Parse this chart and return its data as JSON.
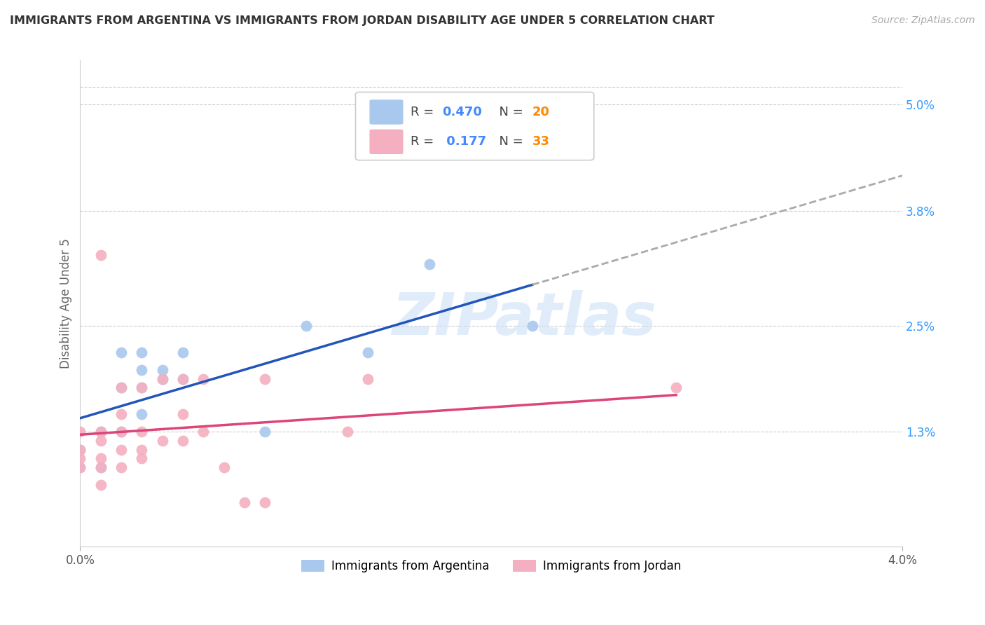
{
  "title": "IMMIGRANTS FROM ARGENTINA VS IMMIGRANTS FROM JORDAN DISABILITY AGE UNDER 5 CORRELATION CHART",
  "source": "Source: ZipAtlas.com",
  "ylabel": "Disability Age Under 5",
  "xlim": [
    0.0,
    0.04
  ],
  "ylim": [
    0.0,
    0.055
  ],
  "yticks": [
    0.013,
    0.025,
    0.038,
    0.05
  ],
  "ytick_labels": [
    "1.3%",
    "2.5%",
    "3.8%",
    "5.0%"
  ],
  "xticks": [
    0.0,
    0.04
  ],
  "xtick_labels": [
    "0.0%",
    "4.0%"
  ],
  "grid_color": "#cccccc",
  "background_color": "#ffffff",
  "watermark": "ZIPatlas",
  "argentina_color": "#a8c8ee",
  "jordan_color": "#f4b0c0",
  "argentina_label": "Immigrants from Argentina",
  "jordan_label": "Immigrants from Jordan",
  "R_argentina": "0.470",
  "N_argentina": "20",
  "R_jordan": "0.177",
  "N_jordan": "33",
  "argentina_x": [
    0.0,
    0.0,
    0.001,
    0.001,
    0.002,
    0.002,
    0.002,
    0.003,
    0.003,
    0.003,
    0.003,
    0.004,
    0.004,
    0.005,
    0.005,
    0.009,
    0.011,
    0.014,
    0.017,
    0.022
  ],
  "argentina_y": [
    0.009,
    0.011,
    0.009,
    0.013,
    0.013,
    0.018,
    0.022,
    0.015,
    0.018,
    0.02,
    0.022,
    0.019,
    0.02,
    0.019,
    0.022,
    0.013,
    0.025,
    0.022,
    0.032,
    0.025
  ],
  "jordan_x": [
    0.0,
    0.0,
    0.0,
    0.0,
    0.001,
    0.001,
    0.001,
    0.001,
    0.001,
    0.001,
    0.002,
    0.002,
    0.002,
    0.002,
    0.002,
    0.003,
    0.003,
    0.003,
    0.003,
    0.004,
    0.004,
    0.005,
    0.005,
    0.005,
    0.006,
    0.006,
    0.007,
    0.008,
    0.009,
    0.009,
    0.013,
    0.014,
    0.029
  ],
  "jordan_y": [
    0.009,
    0.01,
    0.011,
    0.013,
    0.007,
    0.009,
    0.01,
    0.012,
    0.013,
    0.033,
    0.009,
    0.011,
    0.013,
    0.015,
    0.018,
    0.01,
    0.011,
    0.013,
    0.018,
    0.012,
    0.019,
    0.012,
    0.015,
    0.019,
    0.013,
    0.019,
    0.009,
    0.005,
    0.005,
    0.019,
    0.013,
    0.019,
    0.018
  ],
  "argentina_line_color": "#2255bb",
  "jordan_line_color": "#dd4477",
  "trend_line_ext_color": "#aaaaaa",
  "legend_R_color": "#4488ff",
  "legend_N_color": "#ff8800"
}
